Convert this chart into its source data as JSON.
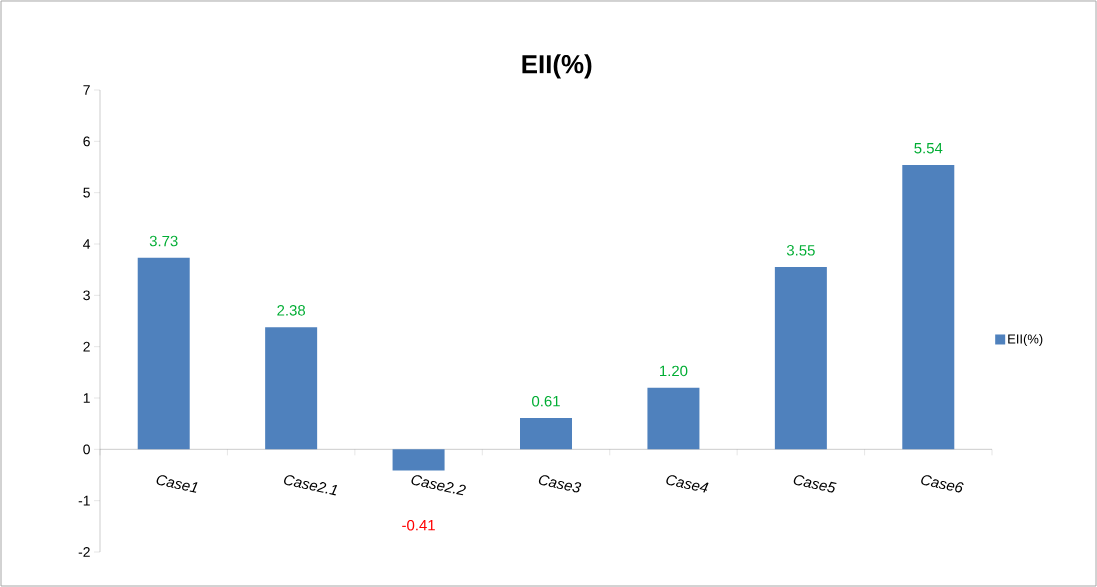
{
  "chart_data": {
    "type": "bar",
    "title": "EII(%)",
    "categories": [
      "Case1",
      "Case2.1",
      "Case2.2",
      "Case3",
      "Case4",
      "Case5",
      "Case6"
    ],
    "series": [
      {
        "name": "EII(%)",
        "color": "#4f81bd",
        "values": [
          3.73,
          2.38,
          -0.41,
          0.61,
          1.2,
          3.55,
          5.54
        ]
      }
    ],
    "value_labels": [
      "3.73",
      "2.38",
      "-0.41",
      "0.61",
      "1.20",
      "3.55",
      "5.54"
    ],
    "ylim": [
      -2,
      7
    ],
    "yticks": [
      -2,
      -1,
      0,
      1,
      2,
      3,
      4,
      5,
      6,
      7
    ],
    "grid": false,
    "legend": "right"
  }
}
